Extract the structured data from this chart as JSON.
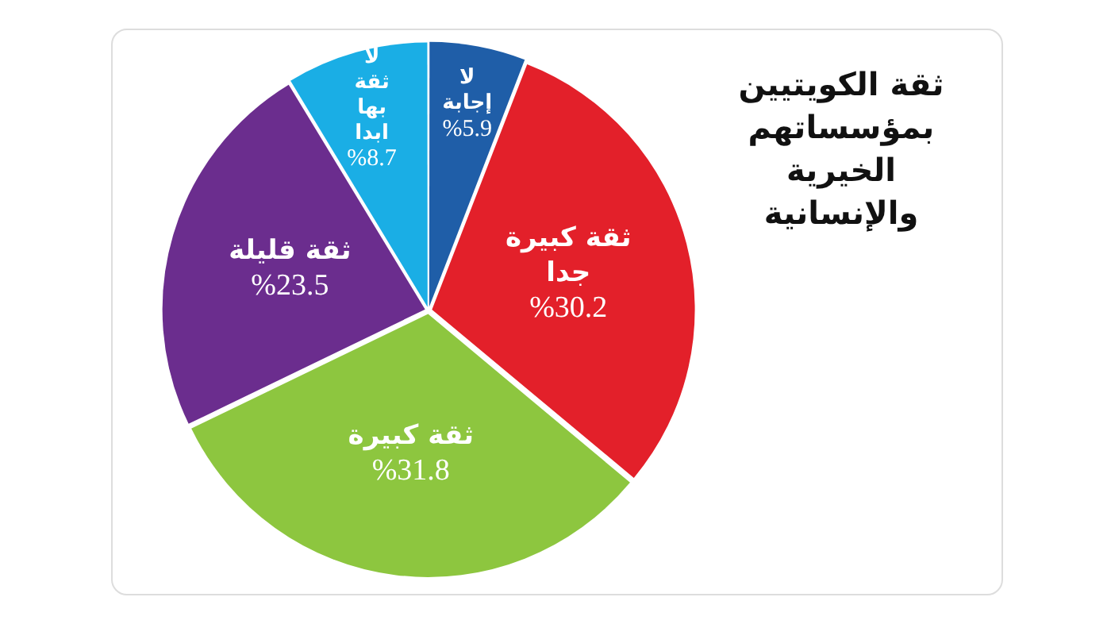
{
  "chart_data": {
    "type": "pie",
    "title": "ثقة الكويتيين بمؤسساتهم الخيرية والإنسانية",
    "categories": [
      "لا إجابة",
      "ثقة كبيرة جدا",
      "ثقة كبيرة",
      "ثقة قليلة",
      "لا ثقة بها ابدا"
    ],
    "values": [
      5.9,
      30.2,
      31.8,
      23.5,
      8.7
    ],
    "colors": [
      "#1f5ea8",
      "#e3202a",
      "#8dc63f",
      "#6b2d8e",
      "#1aaee5"
    ],
    "value_labels": [
      "%5.9",
      "%30.2",
      "%31.8",
      "%23.5",
      "%8.7"
    ]
  }
}
